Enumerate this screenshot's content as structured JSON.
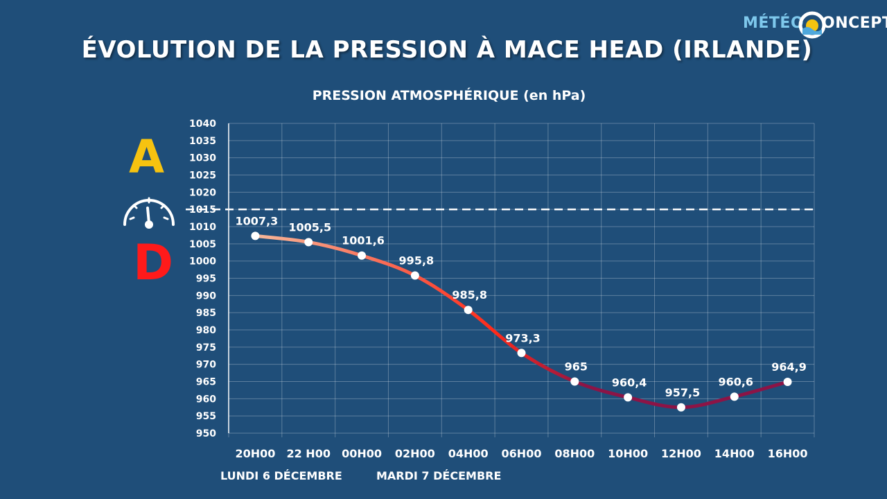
{
  "header": {
    "title": "ÉVOLUTION DE LA PRESSION À MACE HEAD (IRLANDE)",
    "subtitle": "PRESSION ATMOSPHÉRIQUE  (en hPa)"
  },
  "logo": {
    "part1": "MÉTÉO",
    "part2": "ONCEPT"
  },
  "side": {
    "high_letter": "A",
    "low_letter": "D",
    "high_color": "#f6c310",
    "low_color": "#ff1a1a",
    "gauge_icon": "barometer-gauge-icon"
  },
  "dates": {
    "day1": "LUNDI 6 DÉCEMBRE",
    "day2": "MARDI 7 DÉCEMBRE"
  },
  "chart_data": {
    "type": "line",
    "categories": [
      "20h00",
      "22 h00",
      "00h00",
      "02h00",
      "04h00",
      "06h00",
      "08h00",
      "10h00",
      "12h00",
      "14h00",
      "16h00"
    ],
    "values": [
      1007.3,
      1005.5,
      1001.6,
      995.8,
      985.8,
      973.3,
      965,
      960.4,
      957.5,
      960.6,
      964.9
    ],
    "value_labels": [
      "1007,3",
      "1005,5",
      "1001,6",
      "995,8",
      "985,8",
      "973,3",
      "965",
      "960,4",
      "957,5",
      "960,6",
      "964,9"
    ],
    "ylim": [
      950,
      1040
    ],
    "ytick_step": 5,
    "reference_line": 1015,
    "grid": true,
    "line_colors": [
      "#f5b89a",
      "#ff2a1a",
      "#8c1446"
    ],
    "reference_color": "#ffffff"
  }
}
